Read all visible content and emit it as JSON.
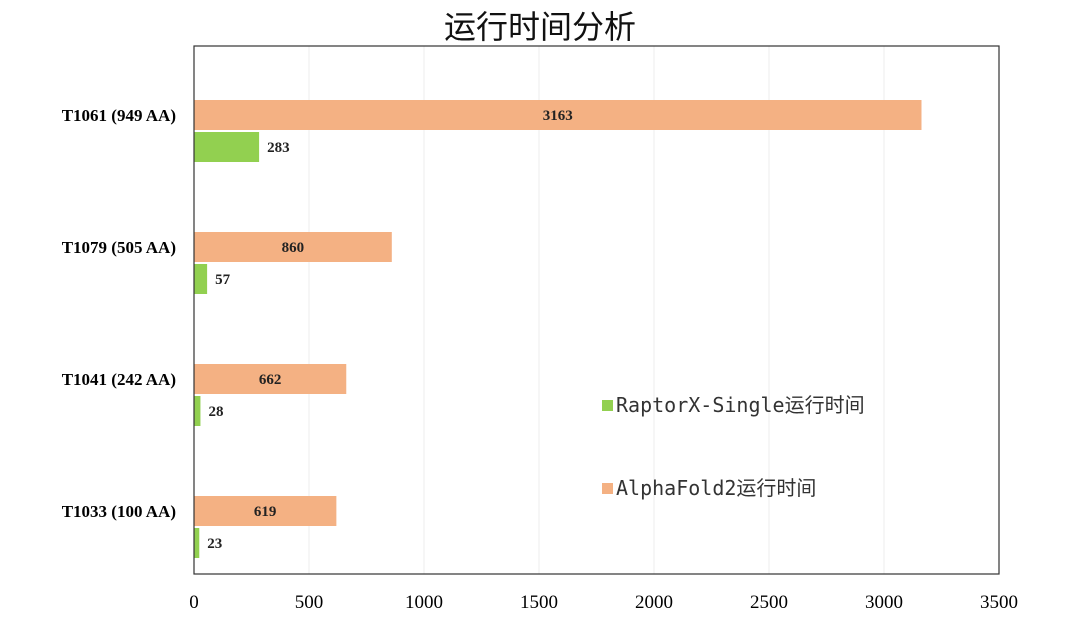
{
  "chart_data": {
    "type": "bar",
    "orientation": "horizontal",
    "title": "运行时间分析",
    "categories": [
      "T1061 (949 AA)",
      "T1079 (505 AA)",
      "T1041 (242 AA)",
      "T1033 (100 AA)"
    ],
    "series": [
      {
        "name": "AlphaFold2运行时间",
        "values": [
          3163,
          860,
          662,
          619
        ],
        "color": "#f4b183"
      },
      {
        "name": "RaptorX-Single运行时间",
        "values": [
          283,
          57,
          28,
          23
        ],
        "color": "#92d050"
      }
    ],
    "xlim": [
      0,
      3500
    ],
    "xticks": [
      0,
      500,
      1000,
      1500,
      2000,
      2500,
      3000,
      3500
    ],
    "grid": true,
    "data_labels": true,
    "legend_placement": "bottom-right"
  }
}
